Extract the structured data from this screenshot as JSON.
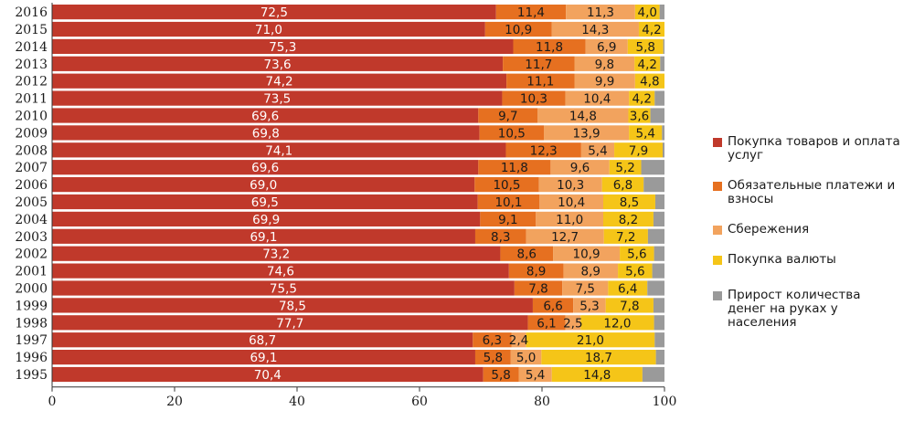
{
  "chart_data": {
    "type": "bar",
    "orientation": "horizontal",
    "stacked": true,
    "title": "",
    "xlabel": "",
    "ylabel": "",
    "xlim": [
      0,
      100
    ],
    "xticks": [
      "0",
      "20",
      "40",
      "60",
      "80",
      "100"
    ],
    "grid": false,
    "legend_position": "right",
    "categories": [
      "2016",
      "2015",
      "2014",
      "2013",
      "2012",
      "2011",
      "2010",
      "2009",
      "2008",
      "2007",
      "2006",
      "2005",
      "2004",
      "2003",
      "2002",
      "2001",
      "2000",
      "1999",
      "1998",
      "1997",
      "1996",
      "1995"
    ],
    "series": [
      {
        "name": "Покупка товаров и оплата услуг",
        "color": "#c0392b",
        "label_color": "#ffffff",
        "values": [
          72.5,
          71.0,
          75.3,
          73.6,
          74.2,
          73.5,
          69.6,
          69.8,
          74.1,
          69.6,
          69.0,
          69.5,
          69.9,
          69.1,
          73.2,
          74.6,
          75.5,
          78.5,
          77.7,
          68.7,
          69.1,
          70.4
        ],
        "labels": [
          "72,5",
          "71,0",
          "75,3",
          "73,6",
          "74,2",
          "73,5",
          "69,6",
          "69,8",
          "74,1",
          "69,6",
          "69,0",
          "69,5",
          "69,9",
          "69,1",
          "73,2",
          "74,6",
          "75,5",
          "78,5",
          "77,7",
          "68,7",
          "69,1",
          "70,4"
        ]
      },
      {
        "name": "Обязательные платежи и взносы",
        "color": "#e67020",
        "label_color": "#1a1a1a",
        "values": [
          11.4,
          10.9,
          11.8,
          11.7,
          11.1,
          10.3,
          9.7,
          10.5,
          12.3,
          11.8,
          10.5,
          10.1,
          9.1,
          8.3,
          8.6,
          8.9,
          7.8,
          6.6,
          6.1,
          6.3,
          5.8,
          5.8
        ],
        "labels": [
          "11,4",
          "10,9",
          "11,8",
          "11,7",
          "11,1",
          "10,3",
          "9,7",
          "10,5",
          "12,3",
          "11,8",
          "10,5",
          "10,1",
          "9,1",
          "8,3",
          "8,6",
          "8,9",
          "7,8",
          "6,6",
          "6,1",
          "6,3",
          "5,8",
          "5,8"
        ]
      },
      {
        "name": "Сбережения",
        "color": "#f2a35e",
        "label_color": "#1a1a1a",
        "values": [
          11.3,
          14.3,
          6.9,
          9.8,
          9.9,
          10.4,
          14.8,
          13.9,
          5.4,
          9.6,
          10.3,
          10.4,
          11.0,
          12.7,
          10.9,
          8.9,
          7.5,
          5.3,
          2.5,
          2.4,
          5.0,
          5.4
        ],
        "labels": [
          "11,3",
          "14,3",
          "6,9",
          "9,8",
          "9,9",
          "10,4",
          "14,8",
          "13,9",
          "5,4",
          "9,6",
          "10,3",
          "10,4",
          "11,0",
          "12,7",
          "10,9",
          "8,9",
          "7,5",
          "5,3",
          "2,5",
          "2,4",
          "5,0",
          "5,4"
        ]
      },
      {
        "name": "Покупка валюты",
        "color": "#f5c518",
        "label_color": "#1a1a1a",
        "values": [
          4.0,
          4.2,
          5.8,
          4.2,
          4.8,
          4.2,
          3.6,
          5.4,
          7.9,
          5.2,
          6.8,
          8.5,
          8.2,
          7.2,
          5.6,
          5.6,
          6.4,
          7.8,
          12.0,
          21.0,
          18.7,
          14.8
        ],
        "labels": [
          "4,0",
          "4,2",
          "5,8",
          "4,2",
          "4,8",
          "4,2",
          "3,6",
          "5,4",
          "7,9",
          "5,2",
          "6,8",
          "8,5",
          "8,2",
          "7,2",
          "5,6",
          "5,6",
          "6,4",
          "7,8",
          "12,0",
          "21,0",
          "18,7",
          "14,8"
        ]
      },
      {
        "name": "Прирост количества денег на руках у населения",
        "color": "#9a9a9a",
        "label_color": "#1a1a1a",
        "values": [
          0.8,
          0.0,
          0.2,
          0.7,
          0.0,
          1.6,
          2.3,
          0.4,
          0.3,
          3.8,
          3.4,
          1.5,
          1.8,
          2.7,
          1.7,
          2.0,
          2.8,
          1.8,
          1.7,
          1.6,
          1.4,
          3.6
        ],
        "labels": []
      }
    ]
  },
  "legend": {
    "items": [
      {
        "label": "Покупка товаров и оплата услуг",
        "color": "#c0392b"
      },
      {
        "label": "Обязательные платежи и взносы",
        "color": "#e67020"
      },
      {
        "label": "Сбережения",
        "color": "#f2a35e"
      },
      {
        "label": "Покупка валюты",
        "color": "#f5c518"
      },
      {
        "label": "Прирост количества денег на руках у населения",
        "color": "#9a9a9a"
      }
    ]
  }
}
